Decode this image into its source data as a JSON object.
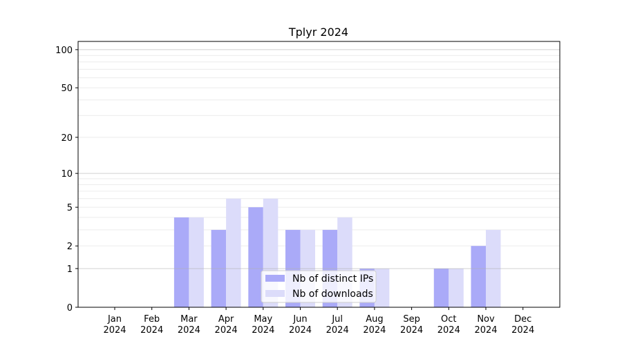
{
  "chart_data": {
    "type": "bar",
    "title": "Tplyr 2024",
    "xlabel": "",
    "ylabel": "",
    "y_scale": "log10(y+1)",
    "ylim": [
      0,
      116
    ],
    "y_ticks": [
      0,
      1,
      2,
      5,
      10,
      20,
      50,
      100
    ],
    "grid": true,
    "legend_position": "bottom-center",
    "categories": [
      "Jan\n2024",
      "Feb\n2024",
      "Mar\n2024",
      "Apr\n2024",
      "May\n2024",
      "Jun\n2024",
      "Jul\n2024",
      "Aug\n2024",
      "Sep\n2024",
      "Oct\n2024",
      "Nov\n2024",
      "Dec\n2024"
    ],
    "series": [
      {
        "name": "Nb of distinct IPs",
        "color": "#aaaaf8",
        "values": [
          0,
          0,
          4,
          3,
          5,
          3,
          3,
          1,
          0,
          1,
          2,
          0
        ]
      },
      {
        "name": "Nb of downloads",
        "color": "#dcdcfa",
        "values": [
          0,
          0,
          4,
          6,
          6,
          3,
          4,
          1,
          0,
          1,
          3,
          0
        ]
      }
    ]
  }
}
